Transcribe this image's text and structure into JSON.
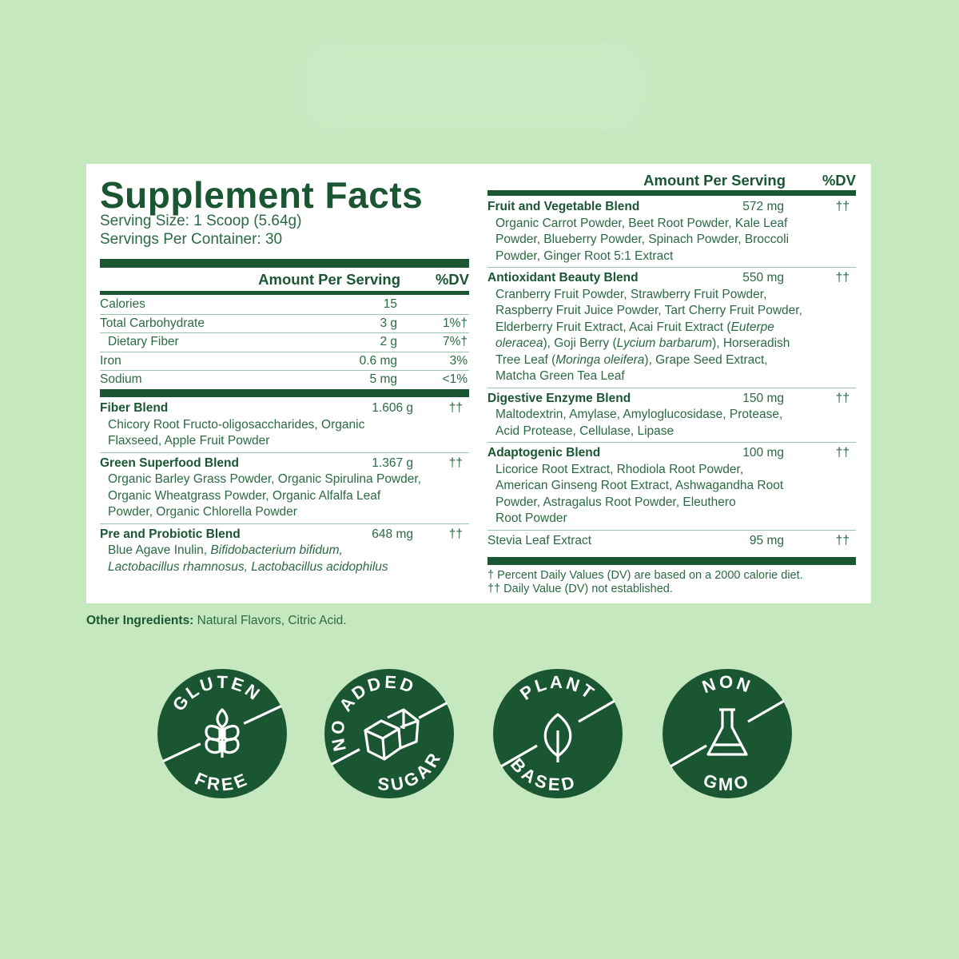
{
  "label": {
    "title": "Supplement Facts",
    "serving_size": "Serving Size: 1 Scoop (5.64g)",
    "servings_per_container": "Servings Per Container: 30",
    "amount_header": "Amount Per Serving",
    "dv_header": "%DV",
    "nutrients": [
      {
        "name": "Calories",
        "amount": "15",
        "dv": ""
      },
      {
        "name": "Total Carbohydrate",
        "amount": "3 g",
        "dv": "1%†"
      },
      {
        "name": "Dietary Fiber",
        "amount": "2 g",
        "dv": "7%†",
        "indent": true
      },
      {
        "name": "Iron",
        "amount": "0.6 mg",
        "dv": "3%"
      },
      {
        "name": "Sodium",
        "amount": "5 mg",
        "dv": "<1%"
      }
    ],
    "left_blends": [
      {
        "name": "Fiber Blend",
        "amount": "1.606 g",
        "dv": "††",
        "lines": [
          [
            {
              "t": "Chicory Root Fructo-oligosaccharides, Organic"
            }
          ],
          [
            {
              "t": "Flaxseed, Apple Fruit Powder"
            }
          ]
        ]
      },
      {
        "name": "Green Superfood Blend",
        "amount": "1.367 g",
        "dv": "††",
        "lines": [
          [
            {
              "t": "Organic Barley Grass Powder, Organic Spirulina Powder,"
            }
          ],
          [
            {
              "t": "Organic Wheatgrass Powder, Organic Alfalfa Leaf"
            }
          ],
          [
            {
              "t": "Powder, Organic Chlorella Powder"
            }
          ]
        ]
      },
      {
        "name": "Pre and Probiotic Blend",
        "amount": "648 mg",
        "dv": "††",
        "lines": [
          [
            {
              "t": "Blue Agave Inulin, "
            },
            {
              "t": "Bifidobacterium bifidum,",
              "i": true
            }
          ],
          [
            {
              "t": "Lactobacillus rhamnosus, Lactobacillus acidophilus",
              "i": true
            }
          ]
        ]
      }
    ],
    "right_blends": [
      {
        "name": "Fruit and Vegetable Blend",
        "amount": "572 mg",
        "dv": "††",
        "lines": [
          [
            {
              "t": "Organic Carrot Powder, Beet Root Powder, Kale Leaf"
            }
          ],
          [
            {
              "t": "Powder, Blueberry Powder, Spinach Powder, Broccoli"
            }
          ],
          [
            {
              "t": "Powder, Ginger Root 5:1 Extract"
            }
          ]
        ]
      },
      {
        "name": "Antioxidant Beauty Blend",
        "amount": "550 mg",
        "dv": "††",
        "lines": [
          [
            {
              "t": "Cranberry Fruit Powder, Strawberry Fruit Powder,"
            }
          ],
          [
            {
              "t": "Raspberry Fruit Juice Powder, Tart Cherry Fruit Powder,"
            }
          ],
          [
            {
              "t": "Elderberry Fruit Extract, Acai Fruit Extract ("
            },
            {
              "t": "Euterpe",
              "i": true
            }
          ],
          [
            {
              "t": "oleracea",
              "i": true
            },
            {
              "t": "), Goji Berry ("
            },
            {
              "t": "Lycium barbarum",
              "i": true
            },
            {
              "t": "), Horseradish"
            }
          ],
          [
            {
              "t": "Tree Leaf ("
            },
            {
              "t": "Moringa oleifera",
              "i": true
            },
            {
              "t": "), Grape Seed Extract,"
            }
          ],
          [
            {
              "t": "Matcha Green Tea Leaf"
            }
          ]
        ]
      },
      {
        "name": "Digestive Enzyme Blend",
        "amount": "150 mg",
        "dv": "††",
        "lines": [
          [
            {
              "t": "Maltodextrin, Amylase, Amyloglucosidase, Protease,"
            }
          ],
          [
            {
              "t": "Acid Protease, Cellulase, Lipase"
            }
          ]
        ]
      },
      {
        "name": "Adaptogenic Blend",
        "amount": "100 mg",
        "dv": "††",
        "lines": [
          [
            {
              "t": "Licorice Root Extract, Rhodiola Root Powder,"
            }
          ],
          [
            {
              "t": "American Ginseng Root Extract, Ashwagandha Root"
            }
          ],
          [
            {
              "t": "Powder, Astragalus Root Powder, Eleuthero"
            }
          ],
          [
            {
              "t": "Root Powder"
            }
          ]
        ]
      },
      {
        "name": "Stevia Leaf Extract",
        "amount": "95 mg",
        "dv": "††",
        "plain": true,
        "lines": []
      }
    ],
    "footnotes": [
      "† Percent Daily Values (DV) are based on a 2000 calorie diet.",
      "†† Daily Value (DV) not established."
    ]
  },
  "other_ingredients": {
    "label": "Other Ingredients:",
    "value": " Natural Flavors, Citric Acid."
  },
  "badges": [
    {
      "top": "GLUTEN",
      "bottom": "FREE",
      "icon": "wheat-icon"
    },
    {
      "top": "NO ADDED",
      "bottom": "SUGAR",
      "icon": "sugar-cubes-icon"
    },
    {
      "top": "PLANT",
      "bottom": "BASED",
      "icon": "leaf-icon"
    },
    {
      "top": "NON",
      "bottom": "GMO",
      "icon": "flask-icon"
    }
  ],
  "colors": {
    "background": "#c6e8bf",
    "brand_green": "#1b5632",
    "text_green": "#2b6a43",
    "panel": "#ffffff"
  }
}
